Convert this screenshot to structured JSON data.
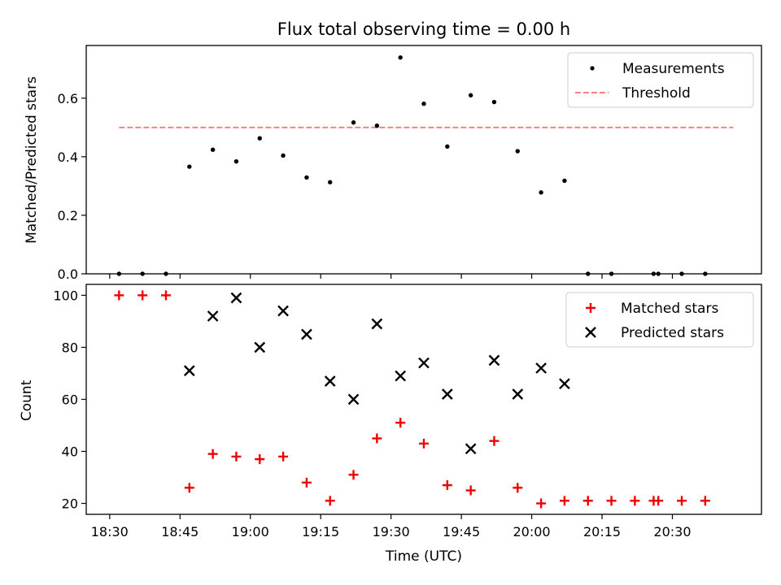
{
  "chart_data": [
    {
      "type": "scatter",
      "title": "Flux total observing time = 0.00 h",
      "xlabel": "",
      "ylabel": "Matched/Predicted stars",
      "ylim": [
        0,
        0.78
      ],
      "yticks": [
        0.0,
        0.2,
        0.4,
        0.6
      ],
      "ytick_labels": [
        "0.0",
        "0.2",
        "0.4",
        "0.6"
      ],
      "xlim_minutes": [
        1105,
        1249
      ],
      "legend_position": "top-right",
      "threshold": {
        "name": "Threshold",
        "value": 0.5,
        "x_range": [
          1112,
          1243
        ],
        "color": "#ff8080",
        "style": "dashed"
      },
      "series": [
        {
          "name": "Measurements",
          "marker": "dot",
          "color": "#000000",
          "x": [
            1112,
            1117,
            1122,
            1127,
            1132,
            1137,
            1142,
            1147,
            1152,
            1157,
            1162,
            1167,
            1172,
            1177,
            1182,
            1187,
            1192,
            1197,
            1202,
            1207,
            1212,
            1217,
            1226,
            1227,
            1232,
            1237
          ],
          "y": [
            0.0,
            0.0,
            0.0,
            0.366,
            0.424,
            0.384,
            0.463,
            0.404,
            0.329,
            0.313,
            0.517,
            0.506,
            0.739,
            0.581,
            0.435,
            0.61,
            0.587,
            0.419,
            0.278,
            0.318,
            0.0,
            0.0,
            0.0,
            0.0,
            0.0,
            0.0
          ]
        }
      ]
    },
    {
      "type": "scatter",
      "title": "",
      "xlabel": "Time (UTC)",
      "ylabel": "Count",
      "ylim": [
        15.8,
        104.2
      ],
      "yticks": [
        20,
        40,
        60,
        80,
        100
      ],
      "ytick_labels": [
        "20",
        "40",
        "60",
        "80",
        "100"
      ],
      "xlim_minutes": [
        1105,
        1249
      ],
      "xticks_minutes": [
        1110,
        1125,
        1140,
        1155,
        1170,
        1185,
        1200,
        1215,
        1230
      ],
      "xtick_labels": [
        "18:30",
        "18:45",
        "19:00",
        "19:15",
        "19:30",
        "19:45",
        "20:00",
        "20:15",
        "20:30"
      ],
      "legend_position": "top-right",
      "series": [
        {
          "name": "Matched stars",
          "marker": "plus",
          "color": "#ee0000",
          "x": [
            1112,
            1117,
            1122,
            1127,
            1132,
            1137,
            1142,
            1147,
            1152,
            1157,
            1162,
            1167,
            1172,
            1177,
            1182,
            1187,
            1192,
            1197,
            1202,
            1207,
            1212,
            1217,
            1222,
            1226,
            1227,
            1232,
            1237
          ],
          "y": [
            100,
            100,
            100,
            26,
            39,
            38,
            37,
            38,
            28,
            21,
            31,
            45,
            51,
            43,
            27,
            25,
            44,
            26,
            20,
            21,
            21,
            21,
            21,
            21,
            21,
            21,
            21
          ]
        },
        {
          "name": "Predicted stars",
          "marker": "x",
          "color": "#000000",
          "x": [
            1127,
            1132,
            1137,
            1142,
            1147,
            1152,
            1157,
            1162,
            1167,
            1172,
            1177,
            1182,
            1187,
            1192,
            1197,
            1202,
            1207
          ],
          "y": [
            71,
            92,
            99,
            80,
            94,
            85,
            67,
            60,
            89,
            69,
            74,
            62,
            41,
            75,
            62,
            72,
            66
          ]
        }
      ]
    }
  ]
}
